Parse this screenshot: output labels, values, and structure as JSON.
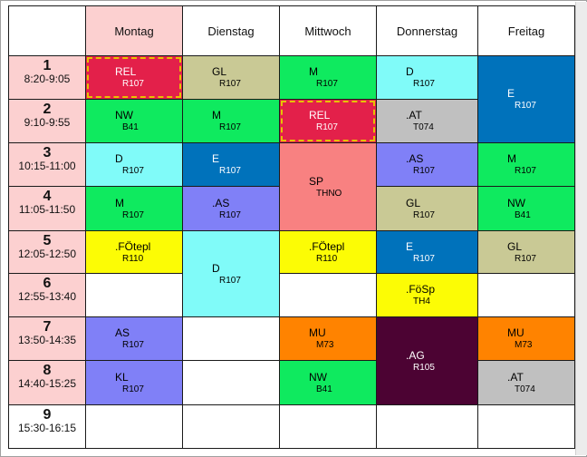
{
  "colors": {
    "red": "#e3204a",
    "khaki": "#c9c995",
    "green": "#0fea5f",
    "cyan": "#80fbf9",
    "blue": "#0072bb",
    "gray": "#c0c0c0",
    "salmon": "#f88181",
    "lavender": "#8080f7",
    "yellow": "#fcfc05",
    "orange": "#ff8300",
    "purple": "#4c0333",
    "white": "#ffffff",
    "today_header": "#fcd0d0",
    "period_header": "#fcd0d0"
  },
  "days": [
    "Montag",
    "Dienstag",
    "Mittwoch",
    "Donnerstag",
    "Freitag"
  ],
  "periods": [
    {
      "num": "1",
      "time": "8:20-9:05"
    },
    {
      "num": "2",
      "time": "9:10-9:55"
    },
    {
      "num": "3",
      "time": "10:15-11:00"
    },
    {
      "num": "4",
      "time": "11:05-11:50"
    },
    {
      "num": "5",
      "time": "12:05-12:50"
    },
    {
      "num": "6",
      "time": "12:55-13:40"
    },
    {
      "num": "7",
      "time": "13:50-14:35"
    },
    {
      "num": "8",
      "time": "14:40-15:25"
    },
    {
      "num": "9",
      "time": "15:30-16:15"
    }
  ],
  "lessons": [
    {
      "day": 0,
      "period": 1,
      "span": 1,
      "subject": "REL",
      "room": "R107",
      "color": "red",
      "text": "white",
      "highlight": true
    },
    {
      "day": 0,
      "period": 2,
      "span": 1,
      "subject": "NW",
      "room": "B41",
      "color": "green",
      "text": "black"
    },
    {
      "day": 0,
      "period": 3,
      "span": 1,
      "subject": "D",
      "room": "R107",
      "color": "cyan",
      "text": "black"
    },
    {
      "day": 0,
      "period": 4,
      "span": 1,
      "subject": "M",
      "room": "R107",
      "color": "green",
      "text": "black"
    },
    {
      "day": 0,
      "period": 5,
      "span": 1,
      "subject": ".FÖtepl",
      "room": "R110",
      "color": "yellow",
      "text": "black"
    },
    {
      "day": 0,
      "period": 7,
      "span": 1,
      "subject": "AS",
      "room": "R107",
      "color": "lavender",
      "text": "black"
    },
    {
      "day": 0,
      "period": 8,
      "span": 1,
      "subject": "KL",
      "room": "R107",
      "color": "lavender",
      "text": "black"
    },
    {
      "day": 1,
      "period": 1,
      "span": 1,
      "subject": "GL",
      "room": "R107",
      "color": "khaki",
      "text": "black"
    },
    {
      "day": 1,
      "period": 2,
      "span": 1,
      "subject": "M",
      "room": "R107",
      "color": "green",
      "text": "black"
    },
    {
      "day": 1,
      "period": 3,
      "span": 1,
      "subject": "E",
      "room": "R107",
      "color": "blue",
      "text": "white"
    },
    {
      "day": 1,
      "period": 4,
      "span": 1,
      "subject": ".AS",
      "room": "R107",
      "color": "lavender",
      "text": "black"
    },
    {
      "day": 1,
      "period": 5,
      "span": 2,
      "subject": "D",
      "room": "R107",
      "color": "cyan",
      "text": "black"
    },
    {
      "day": 2,
      "period": 1,
      "span": 1,
      "subject": "M",
      "room": "R107",
      "color": "green",
      "text": "black"
    },
    {
      "day": 2,
      "period": 2,
      "span": 1,
      "subject": "REL",
      "room": "R107",
      "color": "red",
      "text": "white",
      "highlight": true
    },
    {
      "day": 2,
      "period": 3,
      "span": 2,
      "subject": "SP",
      "room": "THNO",
      "color": "salmon",
      "text": "black"
    },
    {
      "day": 2,
      "period": 5,
      "span": 1,
      "subject": ".FÖtepl",
      "room": "R110",
      "color": "yellow",
      "text": "black"
    },
    {
      "day": 2,
      "period": 7,
      "span": 1,
      "subject": "MU",
      "room": "M73",
      "color": "orange",
      "text": "black"
    },
    {
      "day": 2,
      "period": 8,
      "span": 1,
      "subject": "NW",
      "room": "B41",
      "color": "green",
      "text": "black"
    },
    {
      "day": 3,
      "period": 1,
      "span": 1,
      "subject": "D",
      "room": "R107",
      "color": "cyan",
      "text": "black"
    },
    {
      "day": 3,
      "period": 2,
      "span": 1,
      "subject": ".AT",
      "room": "T074",
      "color": "gray",
      "text": "black"
    },
    {
      "day": 3,
      "period": 3,
      "span": 1,
      "subject": ".AS",
      "room": "R107",
      "color": "lavender",
      "text": "black"
    },
    {
      "day": 3,
      "period": 4,
      "span": 1,
      "subject": "GL",
      "room": "R107",
      "color": "khaki",
      "text": "black"
    },
    {
      "day": 3,
      "period": 5,
      "span": 1,
      "subject": "E",
      "room": "R107",
      "color": "blue",
      "text": "white"
    },
    {
      "day": 3,
      "period": 6,
      "span": 1,
      "subject": ".FöSp",
      "room": "TH4",
      "color": "yellow",
      "text": "black"
    },
    {
      "day": 3,
      "period": 7,
      "span": 2,
      "subject": ".AG",
      "room": "R105",
      "color": "purple",
      "text": "white"
    },
    {
      "day": 4,
      "period": 1,
      "span": 2,
      "subject": "E",
      "room": "R107",
      "color": "blue",
      "text": "white"
    },
    {
      "day": 4,
      "period": 3,
      "span": 1,
      "subject": "M",
      "room": "R107",
      "color": "green",
      "text": "black"
    },
    {
      "day": 4,
      "period": 4,
      "span": 1,
      "subject": "NW",
      "room": "B41",
      "color": "green",
      "text": "black"
    },
    {
      "day": 4,
      "period": 5,
      "span": 1,
      "subject": "GL",
      "room": "R107",
      "color": "khaki",
      "text": "black"
    },
    {
      "day": 4,
      "period": 7,
      "span": 1,
      "subject": "MU",
      "room": "M73",
      "color": "orange",
      "text": "black"
    },
    {
      "day": 4,
      "period": 8,
      "span": 1,
      "subject": ".AT",
      "room": "T074",
      "color": "gray",
      "text": "black"
    }
  ]
}
